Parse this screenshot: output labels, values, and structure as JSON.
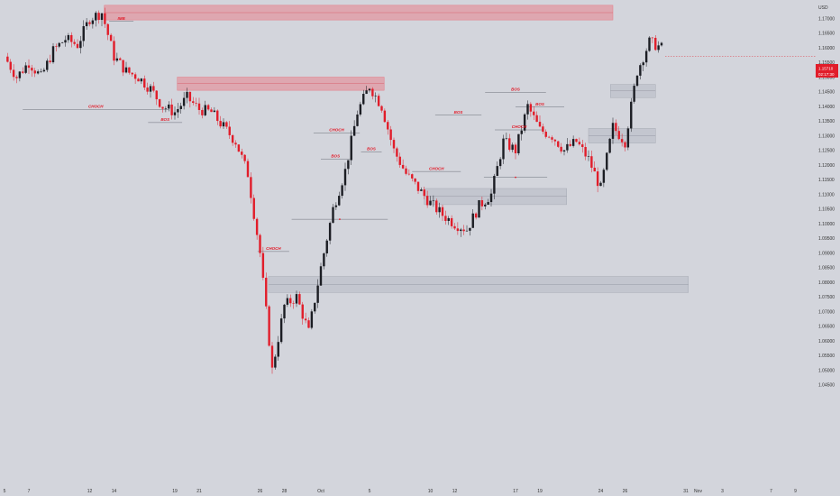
{
  "chart_data": {
    "type": "candlestick",
    "currency": "USD",
    "ylim": [
      1.04,
      1.18
    ],
    "y_ticks": [
      "1.17000",
      "1.16500",
      "1.16000",
      "1.15500",
      "1.15000",
      "1.14500",
      "1.14000",
      "1.13500",
      "1.13000",
      "1.12500",
      "1.12000",
      "1.11500",
      "1.11000",
      "1.10500",
      "1.10000",
      "1.09500",
      "1.09000",
      "1.08500",
      "1.08000",
      "1.07500",
      "1.07000",
      "1.06500",
      "1.06000",
      "1.05500",
      "1.05000",
      "1.04500"
    ],
    "x_ticks": [
      {
        "label": "5",
        "day": 0
      },
      {
        "label": "7",
        "day": 2
      },
      {
        "label": "12",
        "day": 7
      },
      {
        "label": "14",
        "day": 9
      },
      {
        "label": "19",
        "day": 14
      },
      {
        "label": "21",
        "day": 16
      },
      {
        "label": "26",
        "day": 21
      },
      {
        "label": "28",
        "day": 23
      },
      {
        "label": "Oct",
        "day": 26
      },
      {
        "label": "5",
        "day": 30
      },
      {
        "label": "10",
        "day": 35
      },
      {
        "label": "12",
        "day": 37
      },
      {
        "label": "17",
        "day": 42
      },
      {
        "label": "19",
        "day": 44
      },
      {
        "label": "24",
        "day": 49
      },
      {
        "label": "26",
        "day": 51
      },
      {
        "label": "31",
        "day": 56
      },
      {
        "label": "Nov",
        "day": 57
      },
      {
        "label": "3",
        "day": 59
      },
      {
        "label": "7",
        "day": 63
      },
      {
        "label": "9",
        "day": 65
      }
    ],
    "price_path": [
      [
        0,
        1.157
      ],
      [
        1,
        1.15
      ],
      [
        2,
        1.155
      ],
      [
        3,
        1.15
      ],
      [
        4,
        1.159
      ],
      [
        5,
        1.163
      ],
      [
        6,
        1.161
      ],
      [
        7,
        1.17
      ],
      [
        8,
        1.172
      ],
      [
        9,
        1.157
      ],
      [
        10,
        1.152
      ],
      [
        11,
        1.15
      ],
      [
        12,
        1.146
      ],
      [
        13,
        1.14
      ],
      [
        14,
        1.138
      ],
      [
        15,
        1.143
      ],
      [
        16,
        1.139
      ],
      [
        17,
        1.138
      ],
      [
        18,
        1.133
      ],
      [
        19,
        1.128
      ],
      [
        20,
        1.117
      ],
      [
        21,
        1.09
      ],
      [
        22,
        1.05
      ],
      [
        23,
        1.072
      ],
      [
        24,
        1.075
      ],
      [
        25,
        1.063
      ],
      [
        26,
        1.085
      ],
      [
        27,
        1.105
      ],
      [
        28,
        1.118
      ],
      [
        29,
        1.138
      ],
      [
        30,
        1.147
      ],
      [
        31,
        1.14
      ],
      [
        32,
        1.125
      ],
      [
        33,
        1.117
      ],
      [
        34,
        1.112
      ],
      [
        35,
        1.107
      ],
      [
        36,
        1.103
      ],
      [
        37,
        1.1
      ],
      [
        38,
        1.098
      ],
      [
        39,
        1.106
      ],
      [
        40,
        1.11
      ],
      [
        41,
        1.128
      ],
      [
        42,
        1.125
      ],
      [
        43,
        1.14
      ],
      [
        44,
        1.132
      ],
      [
        45,
        1.13
      ],
      [
        46,
        1.125
      ],
      [
        47,
        1.128
      ],
      [
        48,
        1.122
      ],
      [
        49,
        1.112
      ],
      [
        50,
        1.133
      ],
      [
        51,
        1.128
      ],
      [
        52,
        1.152
      ],
      [
        53,
        1.162
      ],
      [
        54,
        1.16
      ]
    ],
    "last_price": "1.15710",
    "countdown": "02:17:30",
    "supply_zones": [
      {
        "x0": 8.2,
        "x1": 50.0,
        "y0": 1.1695,
        "y1": 1.1745,
        "mid": 1.172
      },
      {
        "x0": 14.2,
        "x1": 31.2,
        "y0": 1.1455,
        "y1": 1.15,
        "mid": 1.1478
      }
    ],
    "demand_zones": [
      {
        "x0": 21.7,
        "x1": 56.2,
        "y0": 1.0765,
        "y1": 1.082,
        "mid": 1.0792
      },
      {
        "x0": 34.5,
        "x1": 46.2,
        "y0": 1.1065,
        "y1": 1.112,
        "mid": 1.1093
      },
      {
        "x0": 48.0,
        "x1": 53.5,
        "y0": 1.1275,
        "y1": 1.1325,
        "mid": 1.13
      },
      {
        "x0": 49.8,
        "x1": 53.5,
        "y0": 1.143,
        "y1": 1.1475,
        "mid": 1.1453
      }
    ],
    "structure_lines": [
      {
        "label": "CHOCH",
        "x0": 1.5,
        "x1": 13.5,
        "y": 1.139
      },
      {
        "label": "IMB",
        "x0": 8.6,
        "x1": 10.6,
        "y": 1.169
      },
      {
        "label": "BOS",
        "x0": 11.8,
        "x1": 14.6,
        "y": 1.1345
      },
      {
        "label": "CHOCH",
        "x0": 20.8,
        "x1": 23.4,
        "y": 1.0905
      },
      {
        "label": "",
        "x0": 23.6,
        "x1": 31.5,
        "y": 1.1015
      },
      {
        "label": "BOS",
        "x0": 26.0,
        "x1": 28.4,
        "y": 1.122
      },
      {
        "label": "CHOCH",
        "x0": 25.4,
        "x1": 29.2,
        "y": 1.131
      },
      {
        "label": "BOS",
        "x0": 29.3,
        "x1": 31.0,
        "y": 1.1245
      },
      {
        "label": "CHOCH",
        "x0": 33.5,
        "x1": 37.5,
        "y": 1.1178
      },
      {
        "label": "BOS",
        "x0": 35.4,
        "x1": 39.2,
        "y": 1.137
      },
      {
        "label": "",
        "x0": 39.4,
        "x1": 44.6,
        "y": 1.1158
      },
      {
        "label": "BOS",
        "x0": 39.5,
        "x1": 44.5,
        "y": 1.1448
      },
      {
        "label": "CHOCH",
        "x0": 40.3,
        "x1": 44.3,
        "y": 1.132
      },
      {
        "label": "BOS",
        "x0": 42.0,
        "x1": 46.0,
        "y": 1.1398
      }
    ]
  }
}
